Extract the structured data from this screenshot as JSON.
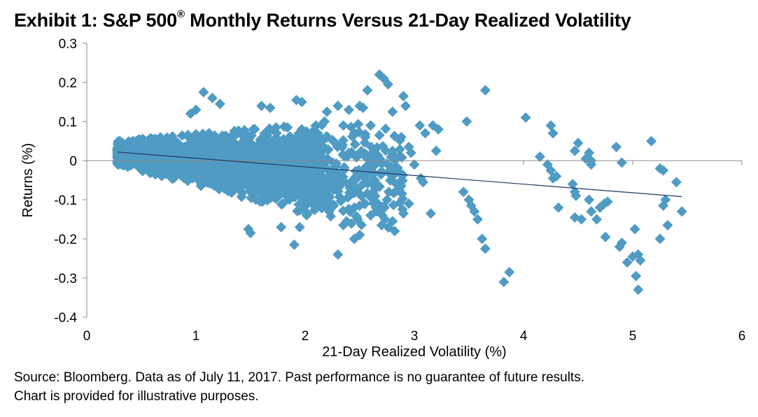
{
  "title": {
    "before": "Exhibit 1: S&P 500",
    "mark": "®",
    "after": " Monthly Returns Versus 21-Day Realized Volatility"
  },
  "source": {
    "line1": "Source: Bloomberg.  Data as of July 11, 2017.  Past performance is no guarantee of future results.",
    "line2": "Chart is provided for illustrative purposes."
  },
  "chart_data": {
    "type": "scatter",
    "xlabel": "21-Day Realized Volatility (%)",
    "ylabel": "Returns (%)",
    "xlim": [
      0,
      6
    ],
    "ylim": [
      -0.4,
      0.3
    ],
    "xticks": [
      0,
      1,
      2,
      3,
      4,
      5,
      6
    ],
    "yticks": [
      0.3,
      0.2,
      0.1,
      0,
      -0.1,
      -0.2,
      -0.3,
      -0.4
    ],
    "grid": false,
    "legend": "none",
    "marker": "diamond",
    "point_color": "#4f9bc3",
    "trend_color": "#1f3864",
    "trendline": {
      "x": [
        0.28,
        5.45
      ],
      "y": [
        0.022,
        -0.092
      ]
    },
    "dense_clusters": [
      {
        "x_range": [
          0.28,
          2.15
        ],
        "y_center_start": 0.02,
        "y_center_end": -0.025,
        "spread_start": 0.03,
        "spread_end": 0.12,
        "count": 2600
      },
      {
        "x_range": [
          1.9,
          2.9
        ],
        "y_center_start": -0.02,
        "y_center_end": -0.04,
        "spread_start": 0.12,
        "spread_end": 0.14,
        "count": 300
      }
    ],
    "points": [
      [
        2.68,
        0.22
      ],
      [
        2.72,
        0.21
      ],
      [
        2.76,
        0.195
      ],
      [
        2.57,
        0.18
      ],
      [
        3.65,
        0.18
      ],
      [
        2.5,
        0.14
      ],
      [
        2.53,
        0.135
      ],
      [
        2.4,
        0.13
      ],
      [
        2.2,
        0.125
      ],
      [
        2.8,
        0.125
      ],
      [
        2.92,
        0.14
      ],
      [
        2.9,
        0.165
      ],
      [
        2.3,
        0.14
      ],
      [
        2.35,
        0.09
      ],
      [
        2.6,
        0.09
      ],
      [
        2.45,
        0.07
      ],
      [
        2.55,
        0.06
      ],
      [
        2.88,
        0.06
      ],
      [
        2.95,
        0.035
      ],
      [
        2.97,
        0.02
      ],
      [
        3.05,
        0.09
      ],
      [
        3.1,
        0.07
      ],
      [
        3.17,
        0.09
      ],
      [
        3.22,
        0.08
      ],
      [
        3.2,
        0.025
      ],
      [
        3.0,
        -0.01
      ],
      [
        3.06,
        -0.045
      ],
      [
        3.08,
        -0.055
      ],
      [
        2.95,
        -0.11
      ],
      [
        2.9,
        -0.135
      ],
      [
        3.15,
        -0.135
      ],
      [
        2.75,
        -0.1
      ],
      [
        2.7,
        -0.125
      ],
      [
        2.7,
        -0.165
      ],
      [
        2.65,
        -0.13
      ],
      [
        2.8,
        -0.155
      ],
      [
        2.82,
        -0.18
      ],
      [
        2.6,
        -0.14
      ],
      [
        2.55,
        -0.11
      ],
      [
        2.45,
        -0.12
      ],
      [
        2.38,
        -0.155
      ],
      [
        2.35,
        -0.165
      ],
      [
        2.5,
        -0.19
      ],
      [
        2.45,
        -0.2
      ],
      [
        2.3,
        -0.24
      ],
      [
        2.22,
        -0.13
      ],
      [
        2.1,
        -0.12
      ],
      [
        1.95,
        -0.17
      ],
      [
        1.9,
        -0.215
      ],
      [
        1.78,
        -0.17
      ],
      [
        3.45,
        -0.08
      ],
      [
        3.5,
        -0.1
      ],
      [
        3.52,
        -0.115
      ],
      [
        3.55,
        -0.13
      ],
      [
        3.58,
        -0.15
      ],
      [
        3.62,
        -0.2
      ],
      [
        3.65,
        -0.225
      ],
      [
        3.48,
        0.1
      ],
      [
        3.82,
        -0.31
      ],
      [
        3.87,
        -0.285
      ],
      [
        4.02,
        0.11
      ],
      [
        4.15,
        0.01
      ],
      [
        4.22,
        -0.01
      ],
      [
        4.25,
        0.09
      ],
      [
        4.27,
        0.07
      ],
      [
        4.25,
        -0.025
      ],
      [
        4.27,
        -0.045
      ],
      [
        4.3,
        -0.04
      ],
      [
        4.32,
        -0.12
      ],
      [
        4.45,
        -0.06
      ],
      [
        4.47,
        -0.08
      ],
      [
        4.48,
        -0.09
      ],
      [
        4.5,
        0.045
      ],
      [
        4.47,
        0.025
      ],
      [
        4.53,
        -0.15
      ],
      [
        4.47,
        -0.145
      ],
      [
        4.57,
        0.005
      ],
      [
        4.6,
        0.02
      ],
      [
        4.62,
        0.0
      ],
      [
        4.62,
        -0.01
      ],
      [
        4.6,
        -0.1
      ],
      [
        4.62,
        -0.13
      ],
      [
        4.67,
        -0.15
      ],
      [
        4.7,
        -0.12
      ],
      [
        4.74,
        -0.11
      ],
      [
        4.77,
        -0.105
      ],
      [
        4.75,
        -0.195
      ],
      [
        4.85,
        0.035
      ],
      [
        4.9,
        -0.005
      ],
      [
        4.9,
        -0.21
      ],
      [
        4.88,
        -0.22
      ],
      [
        4.95,
        -0.26
      ],
      [
        5.02,
        -0.175
      ],
      [
        5.0,
        -0.245
      ],
      [
        5.05,
        -0.24
      ],
      [
        5.07,
        -0.255
      ],
      [
        5.03,
        -0.295
      ],
      [
        5.05,
        -0.33
      ],
      [
        5.17,
        0.05
      ],
      [
        5.25,
        -0.02
      ],
      [
        5.28,
        -0.025
      ],
      [
        5.3,
        -0.1
      ],
      [
        5.28,
        -0.115
      ],
      [
        5.25,
        -0.2
      ],
      [
        5.32,
        -0.165
      ],
      [
        5.4,
        -0.055
      ],
      [
        5.45,
        -0.13
      ],
      [
        1.07,
        0.175
      ],
      [
        1.15,
        0.16
      ],
      [
        1.92,
        0.155
      ],
      [
        1.97,
        0.15
      ],
      [
        1.22,
        0.145
      ],
      [
        1.6,
        0.14
      ],
      [
        1.68,
        0.135
      ],
      [
        1.48,
        -0.175
      ],
      [
        1.5,
        -0.185
      ],
      [
        1.0,
        0.13
      ],
      [
        0.95,
        0.12
      ]
    ]
  }
}
